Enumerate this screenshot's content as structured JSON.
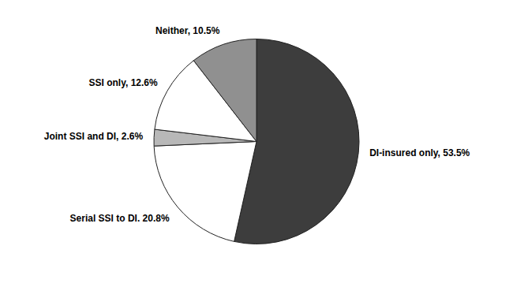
{
  "chart_data": {
    "type": "pie",
    "categories": [
      "DI-insured only, 53.5%",
      "Serial SSI to DI. 20.8%",
      "Joint SSI and DI, 2.6%",
      "SSI only, 12.6%",
      "Neither, 10.5%"
    ],
    "values": [
      53.5,
      20.8,
      2.6,
      12.6,
      10.5
    ],
    "colors": [
      "#3d3d3d",
      "#ffffff",
      "#b8b8b8",
      "#ffffff",
      "#909090"
    ]
  }
}
